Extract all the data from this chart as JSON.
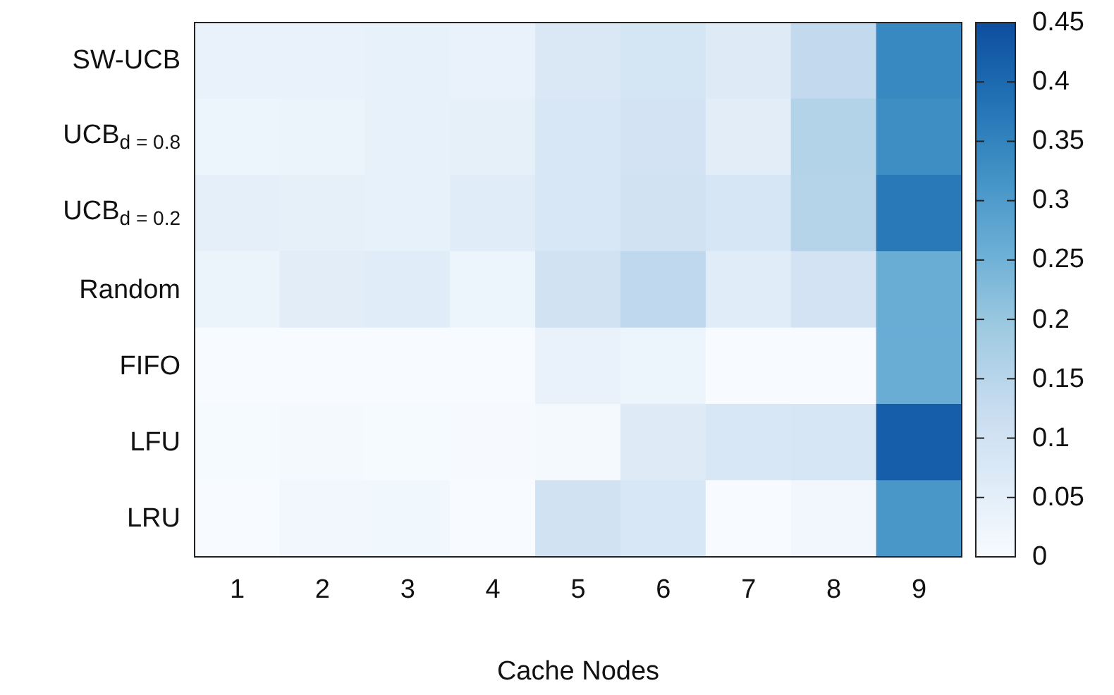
{
  "chart_data": {
    "type": "heatmap",
    "xlabel": "Cache Nodes",
    "categories": [
      "1",
      "2",
      "3",
      "4",
      "5",
      "6",
      "7",
      "8",
      "9"
    ],
    "y_categories": [
      "SW-UCB",
      "UCB$_{d = 0.8}$",
      "UCB$_{d = 0.2}$",
      "Random",
      "FIFO",
      "LFU",
      "LRU"
    ],
    "cells": [
      [
        0.035,
        0.035,
        0.04,
        0.035,
        0.075,
        0.09,
        0.065,
        0.135,
        0.34
      ],
      [
        0.025,
        0.03,
        0.04,
        0.045,
        0.08,
        0.095,
        0.055,
        0.16,
        0.33
      ],
      [
        0.05,
        0.045,
        0.04,
        0.06,
        0.08,
        0.1,
        0.085,
        0.155,
        0.37
      ],
      [
        0.03,
        0.055,
        0.06,
        0.025,
        0.1,
        0.14,
        0.06,
        0.095,
        0.26
      ],
      [
        0,
        0,
        0,
        0,
        0.035,
        0.025,
        0,
        0,
        0.26
      ],
      [
        0.005,
        0.008,
        0.005,
        0.003,
        0.008,
        0.065,
        0.08,
        0.085,
        0.42
      ],
      [
        0,
        0.015,
        0.018,
        0,
        0.1,
        0.08,
        0,
        0.015,
        0.31
      ]
    ],
    "clim": [
      0,
      0.45
    ],
    "cticks": [
      0,
      0.05,
      0.1,
      0.15,
      0.2,
      0.25,
      0.3,
      0.35,
      0.4,
      0.45
    ]
  }
}
